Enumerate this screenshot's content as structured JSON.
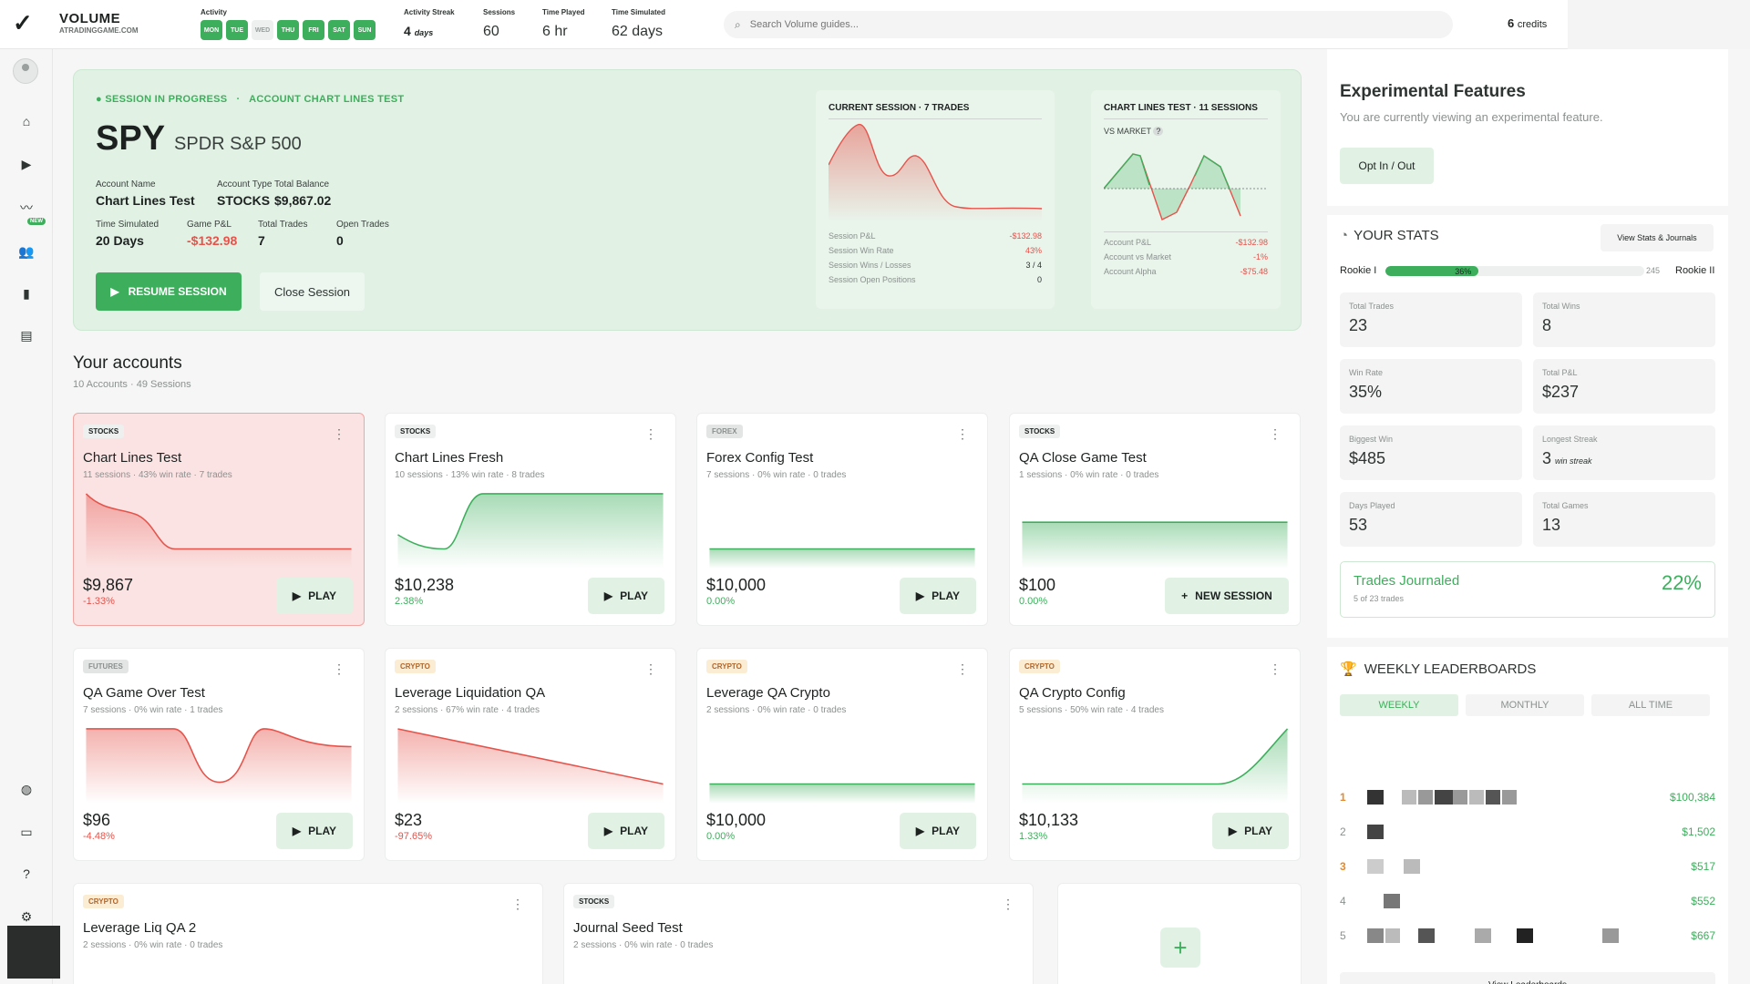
{
  "topbar": {
    "brand_title": "VOLUME",
    "brand_sub": "ATRADINGGAME.COM",
    "activity_label": "Activity",
    "days": [
      {
        "label": "MON",
        "on": true
      },
      {
        "label": "TUE",
        "on": true
      },
      {
        "label": "WED",
        "on": false
      },
      {
        "label": "THU",
        "on": true
      },
      {
        "label": "FRI",
        "on": true
      },
      {
        "label": "SAT",
        "on": true
      },
      {
        "label": "SUN",
        "on": true
      }
    ],
    "streak_label": "Activity Streak",
    "streak_value": "4",
    "streak_unit": "days",
    "sessions_label": "Sessions",
    "sessions_value": "60",
    "time_played_label": "Time Played",
    "time_played_value": "6 hr",
    "time_sim_label": "Time Simulated",
    "time_sim_value": "62 days",
    "search_placeholder": "Search Volume guides...",
    "credits_value": "6",
    "credits_label": "credits"
  },
  "session": {
    "status": "SESSION IN PROGRESS",
    "account_label": "ACCOUNT CHART LINES TEST",
    "symbol": "SPY",
    "name": "SPDR S&P 500",
    "fields": {
      "account_name_k": "Account Name",
      "account_name_v": "Chart Lines Test",
      "account_type_k": "Account Type",
      "account_type_v": "STOCKS",
      "balance_k": "Total Balance",
      "balance_v": "$9,867.02",
      "time_sim_k": "Time Simulated",
      "time_sim_v": "20 Days",
      "game_pl_k": "Game P&L",
      "game_pl_v": "-$132.98",
      "trades_k": "Total Trades",
      "trades_v": "7",
      "open_k": "Open Trades",
      "open_v": "0"
    },
    "resume_label": "RESUME SESSION",
    "close_label": "Close Session",
    "current": {
      "title": "CURRENT SESSION · 7 TRADES",
      "rows": [
        {
          "k": "Session P&L",
          "v": "-$132.98",
          "neg": true
        },
        {
          "k": "Session Win Rate",
          "v": "43%",
          "neg": true
        },
        {
          "k": "Session Wins / Losses",
          "v": "3 / 4",
          "neg": false
        },
        {
          "k": "Session Open Positions",
          "v": "0",
          "neg": false
        }
      ]
    },
    "lines": {
      "title": "CHART LINES TEST · 11 SESSIONS",
      "vs_market": "VS MARKET",
      "help": "?",
      "rows": [
        {
          "k": "Account P&L",
          "v": "-$132.98"
        },
        {
          "k": "Account vs Market",
          "v": "-1%"
        },
        {
          "k": "Account Alpha",
          "v": "-$75.48"
        }
      ]
    }
  },
  "accounts": {
    "title": "Your accounts",
    "subtitle": "10 Accounts · 49 Sessions",
    "play_label": "PLAY",
    "new_session_label": "NEW SESSION",
    "items": [
      {
        "tag": "STOCKS",
        "name": "Chart Lines Test",
        "meta": "11 sessions · 43% win rate · 7 trades",
        "value": "$9,867",
        "change": "-1.33%",
        "trend": "down"
      },
      {
        "tag": "STOCKS",
        "name": "Chart Lines Fresh",
        "meta": "10 sessions · 13% win rate · 8 trades",
        "value": "$10,238",
        "change": "2.38%",
        "trend": "up"
      },
      {
        "tag": "FOREX",
        "name": "Forex Config Test",
        "meta": "7 sessions · 0% win rate · 0 trades",
        "value": "$10,000",
        "change": "0.00%",
        "trend": "flat"
      },
      {
        "tag": "STOCKS",
        "name": "QA Close Game Test",
        "meta": "1 sessions · 0% win rate · 0 trades",
        "value": "$100",
        "change": "0.00%",
        "trend": "flat"
      },
      {
        "tag": "FUTURES",
        "name": "QA Game Over Test",
        "meta": "7 sessions · 0% win rate · 1 trades",
        "value": "$96",
        "change": "-4.48%",
        "trend": "down"
      },
      {
        "tag": "CRYPTO",
        "name": "Leverage Liquidation QA",
        "meta": "2 sessions · 67% win rate · 4 trades",
        "value": "$23",
        "change": "-97.65%",
        "trend": "down"
      },
      {
        "tag": "CRYPTO",
        "name": "Leverage QA Crypto",
        "meta": "2 sessions · 0% win rate · 0 trades",
        "value": "$10,000",
        "change": "0.00%",
        "trend": "flat"
      },
      {
        "tag": "CRYPTO",
        "name": "QA Crypto Config",
        "meta": "5 sessions · 50% win rate · 4 trades",
        "value": "$10,133",
        "change": "1.33%",
        "trend": "up"
      },
      {
        "tag": "CRYPTO",
        "name": "Leverage Liq QA 2",
        "meta": "2 sessions · 0% win rate · 0 trades"
      },
      {
        "tag": "STOCKS",
        "name": "Journal Seed Test",
        "meta": "2 sessions · 0% win rate · 0 trades"
      }
    ],
    "add_symbol": "+"
  },
  "experimental": {
    "title": "Experimental Features",
    "subtitle": "You are currently viewing an experimental feature.",
    "button": "Opt In / Out"
  },
  "stats": {
    "title": "YOUR STATS",
    "view_label": "View Stats & Journals",
    "rank_from": "Rookie I",
    "rank_to": "Rookie II",
    "xp_percent": "36%",
    "xp_fraction": 0.36,
    "xp_points": "245",
    "tiles": [
      {
        "k": "Total Trades",
        "v": "23"
      },
      {
        "k": "Total Wins",
        "v": "8"
      },
      {
        "k": "Win Rate",
        "v": "35%"
      },
      {
        "k": "Total P&L",
        "v": "$237"
      },
      {
        "k": "Biggest Win",
        "v": "$485"
      },
      {
        "k": "Longest Streak",
        "v": "3",
        "sub": "win streak"
      },
      {
        "k": "Days Played",
        "v": "53"
      },
      {
        "k": "Total Games",
        "v": "13"
      }
    ],
    "journaled_label": "Trades Journaled",
    "journaled_sub": "5 of 23 trades",
    "journaled_pct": "22%"
  },
  "leaderboard": {
    "title": "WEEKLY LEADERBOARDS",
    "tabs": [
      "WEEKLY",
      "MONTHLY",
      "ALL TIME"
    ],
    "rows": [
      {
        "rank": "1",
        "amount": "$100,384"
      },
      {
        "rank": "2",
        "amount": "$1,502"
      },
      {
        "rank": "3",
        "amount": "$517"
      },
      {
        "rank": "4",
        "amount": "$552"
      },
      {
        "rank": "5",
        "amount": "$667"
      }
    ],
    "view_label": "View Leaderboards"
  },
  "colors": {
    "accent": "#3daf5c",
    "negative": "#e5534b",
    "crypto_tag": "#b0662a"
  }
}
